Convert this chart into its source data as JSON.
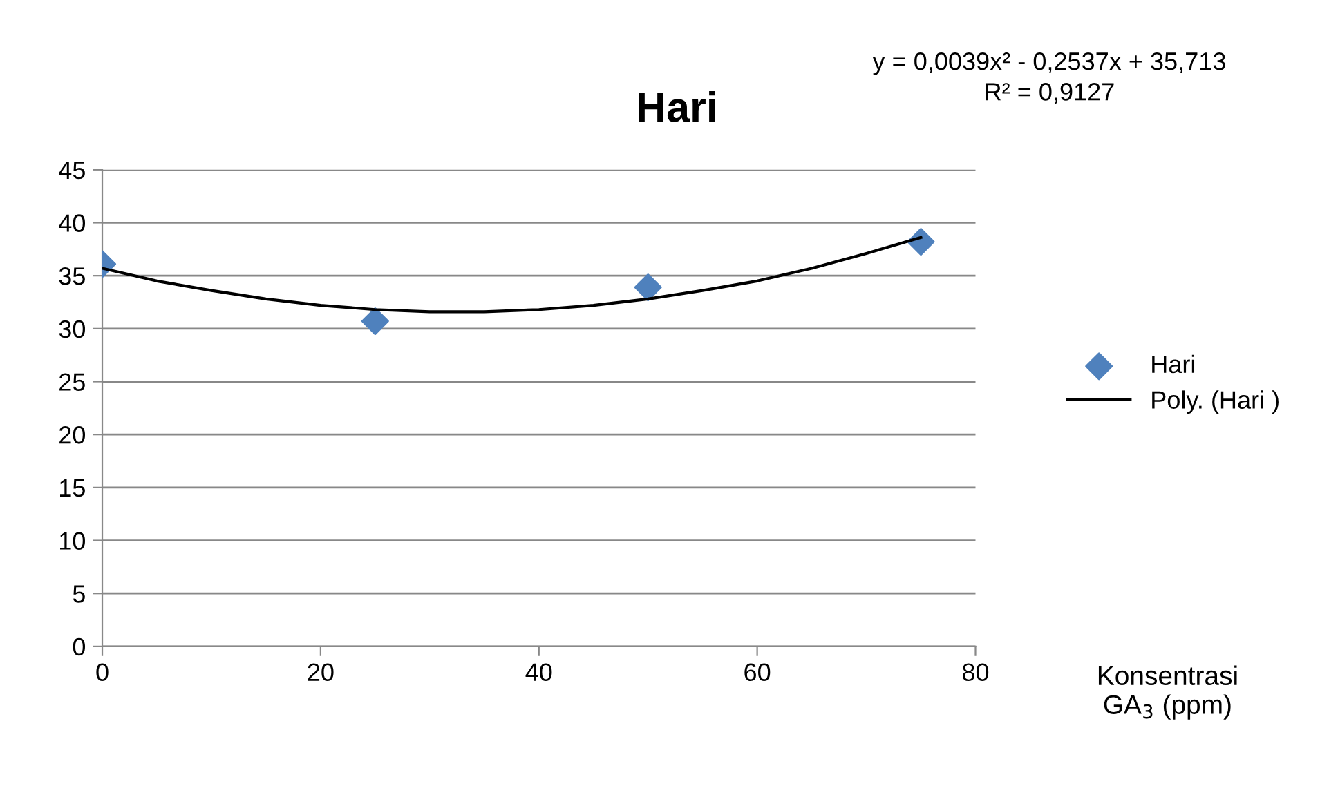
{
  "chart_data": {
    "type": "scatter",
    "title": "Hari",
    "xlabel": "Konsentrasi\nGA$_{3}$ (ppm)",
    "annotations": [
      "y = 0,0039x² - 0,2537x + 35,713\nR² = 0,9127"
    ],
    "series": [
      {
        "name": "Hari",
        "color": "#4f81bd",
        "marker": "diamond",
        "x": [
          0,
          25,
          50,
          75
        ],
        "values": [
          36.1,
          30.7,
          33.9,
          38.2
        ]
      },
      {
        "name": "Poly. (Hari )",
        "type": "line",
        "color": "#000000",
        "marker": "none",
        "line_style": "solid",
        "x": [
          0,
          5,
          10,
          15,
          20,
          25,
          30,
          35,
          40,
          45,
          50,
          55,
          60,
          65,
          70,
          75
        ],
        "values": [
          35.7,
          34.5,
          33.6,
          32.8,
          32.2,
          31.8,
          31.6,
          31.6,
          31.8,
          32.2,
          32.8,
          33.6,
          34.5,
          35.7,
          37.1,
          38.6
        ]
      }
    ],
    "xlim": [
      0,
      80
    ],
    "xticks": [
      0,
      20,
      40,
      60,
      80
    ],
    "ylim": [
      0,
      45
    ],
    "yticks": [
      0,
      5,
      10,
      15,
      20,
      25,
      30,
      35,
      40,
      45
    ],
    "grid": "y",
    "legend": "right"
  }
}
